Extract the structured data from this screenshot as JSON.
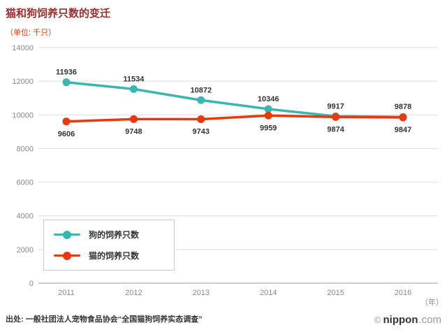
{
  "chart_data": {
    "type": "line",
    "title": "猫和狗饲养只数的变迁",
    "unit_label": "（单位: 千只）",
    "x": [
      2011,
      2012,
      2013,
      2014,
      2015,
      2016
    ],
    "xlabel": "（年）",
    "ylim": [
      0,
      14000
    ],
    "ytick_step": 2000,
    "grid": true,
    "legend_position": "bottom-left",
    "series": [
      {
        "name": "狗的饲养只数",
        "color": "#3ab5b0",
        "values": [
          11936,
          11534,
          10872,
          10346,
          9917,
          9878
        ],
        "label_pos": "above"
      },
      {
        "name": "猫的饲养只数",
        "color": "#e8380d",
        "values": [
          9606,
          9748,
          9743,
          9959,
          9874,
          9847
        ],
        "label_pos": "below"
      }
    ]
  },
  "source": "出处: 一般社团法人宠物食品协会“全国猫狗饲养实态调查”",
  "logo": {
    "copyright": "©",
    "name": "nippon",
    "tld": ".com"
  },
  "colors": {
    "title": "#9e2b2b",
    "unit": "#e8380d",
    "axis_text": "#888888",
    "grid": "#dddddd",
    "baseline": "#999999",
    "value_label": "#333333"
  }
}
